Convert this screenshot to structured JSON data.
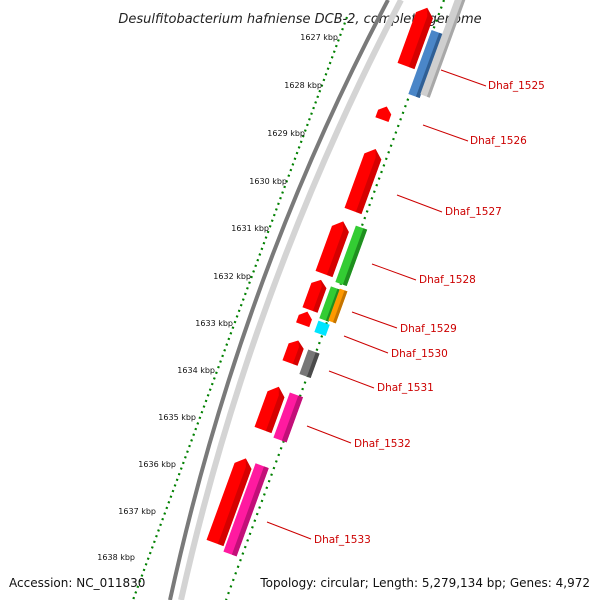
{
  "title": "Desulfitobacterium hafniense DCB-2, complete genome",
  "footer": {
    "accession": "Accession: NC_011830",
    "summary": "Topology: circular; Length: 5,279,134 bp; Genes: 4,972"
  },
  "ticks": [
    "1627 kbp",
    "1628 kbp",
    "1629 kbp",
    "1630 kbp",
    "1631 kbp",
    "1632 kbp",
    "1633 kbp",
    "1634 kbp",
    "1635 kbp",
    "1636 kbp",
    "1637 kbp",
    "1638 kbp"
  ],
  "genes": [
    {
      "id": "Dhaf_1525",
      "color": "#ff0000"
    },
    {
      "id": "Dhaf_1526",
      "color": "#ff0000"
    },
    {
      "id": "Dhaf_1527",
      "color": "#ff0000"
    },
    {
      "id": "Dhaf_1528",
      "color": "#ff0000"
    },
    {
      "id": "Dhaf_1529",
      "color": "#ff0000"
    },
    {
      "id": "Dhaf_1530",
      "color": "#ff0000"
    },
    {
      "id": "Dhaf_1531",
      "color": "#ff0000"
    },
    {
      "id": "Dhaf_1532",
      "color": "#ff0000"
    },
    {
      "id": "Dhaf_1533",
      "color": "#ff0000"
    }
  ],
  "colors": {
    "cds": "#ff0000",
    "cog_green": "#33cc33",
    "cog_blue": "#4a86c8",
    "cog_gray": "#777777",
    "cog_orange": "#ff9900",
    "cog_cyan": "#00e5ff",
    "cog_pink": "#ff1aa0",
    "tick_green": "#008000",
    "label_red": "#cc0000",
    "backbone_gray": "#808080"
  }
}
